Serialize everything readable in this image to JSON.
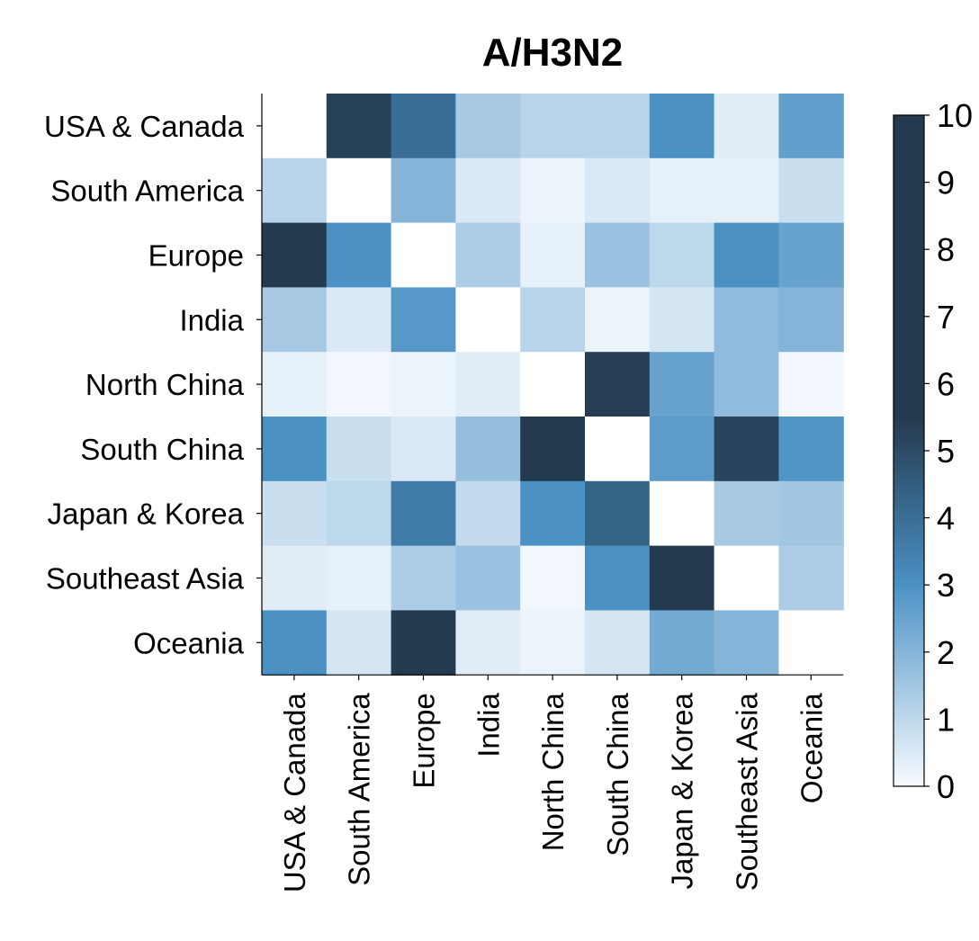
{
  "chart_data": {
    "type": "heatmap",
    "title": "A/H3N2",
    "row_labels": [
      "USA & Canada",
      "South America",
      "Europe",
      "India",
      "North China",
      "South China",
      "Japan & Korea",
      "Southeast Asia",
      "Oceania"
    ],
    "col_labels": [
      "USA & Canada",
      "South America",
      "Europe",
      "India",
      "North China",
      "South China",
      "Japan & Korea",
      "Southeast Asia",
      "Oceania"
    ],
    "values": [
      [
        null,
        5.3,
        4.0,
        1.4,
        1.1,
        1.1,
        3.0,
        0.4,
        2.6
      ],
      [
        1.1,
        null,
        2.0,
        0.5,
        0.2,
        0.5,
        0.3,
        0.3,
        0.8
      ],
      [
        5.5,
        3.0,
        null,
        1.3,
        0.3,
        1.6,
        1.0,
        3.0,
        2.5
      ],
      [
        1.4,
        0.5,
        2.8,
        null,
        1.1,
        0.2,
        0.6,
        1.8,
        2.0
      ],
      [
        0.3,
        0.1,
        0.2,
        0.4,
        null,
        5.4,
        2.5,
        1.8,
        0.1
      ],
      [
        3.0,
        0.8,
        0.5,
        1.7,
        5.5,
        null,
        2.7,
        5.2,
        2.9
      ],
      [
        0.8,
        1.0,
        3.6,
        0.9,
        3.0,
        4.3,
        null,
        1.4,
        1.5
      ],
      [
        0.4,
        0.3,
        1.3,
        1.6,
        0.1,
        3.0,
        5.5,
        null,
        1.3
      ],
      [
        3.0,
        0.6,
        5.5,
        0.4,
        0.2,
        0.6,
        2.3,
        2.0,
        null
      ]
    ],
    "colorbar": {
      "min": 0,
      "max": 10,
      "ticks": [
        0,
        1,
        2,
        3,
        4,
        5,
        6,
        7,
        8,
        9,
        10
      ]
    },
    "colors": {
      "low": "#f7fbff",
      "mid": "#4a90c4",
      "high": "#243a4e",
      "diagonal": "#ffffff"
    }
  }
}
